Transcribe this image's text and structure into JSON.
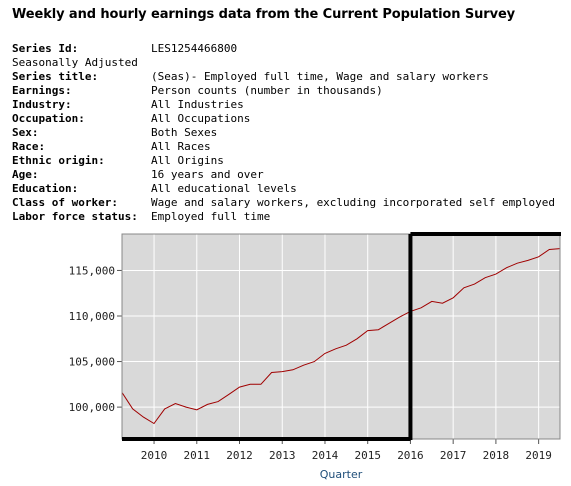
{
  "title": "Weekly and hourly earnings data from the Current Population Survey",
  "meta": [
    {
      "label": "Series Id:",
      "value": "LES1254466800",
      "bold": true
    },
    {
      "label": "Seasonally Adjusted",
      "value": "",
      "bold": false
    },
    {
      "label": "Series title:",
      "value": "(Seas)- Employed full time, Wage and salary workers",
      "bold": true
    },
    {
      "label": "Earnings:",
      "value": "Person counts (number in thousands)",
      "bold": true
    },
    {
      "label": "Industry:",
      "value": "All Industries",
      "bold": true
    },
    {
      "label": "Occupation:",
      "value": "All Occupations",
      "bold": true
    },
    {
      "label": "Sex:",
      "value": "Both Sexes",
      "bold": true
    },
    {
      "label": "Race:",
      "value": "All Races",
      "bold": true
    },
    {
      "label": "Ethnic origin:",
      "value": "All Origins",
      "bold": true
    },
    {
      "label": "Age:",
      "value": "16 years and over",
      "bold": true
    },
    {
      "label": "Education:",
      "value": "All educational levels",
      "bold": true
    },
    {
      "label": "Class of worker:",
      "value": "Wage and salary workers, excluding incorporated self employed",
      "bold": true
    },
    {
      "label": "Labor force status:",
      "value": "Employed full time",
      "bold": true
    }
  ],
  "chart_data": {
    "type": "line",
    "xlabel": "Quarter",
    "ylabel": "",
    "xlim": [
      2009.25,
      2019.5
    ],
    "ylim": [
      96500,
      119000
    ],
    "yticks": [
      100000,
      105000,
      110000,
      115000
    ],
    "ytick_labels": [
      "100,000",
      "105,000",
      "110,000",
      "115,000"
    ],
    "xticks": [
      2010,
      2011,
      2012,
      2013,
      2014,
      2015,
      2016,
      2017,
      2018,
      2019
    ],
    "xtick_labels": [
      "2010",
      "2011",
      "2012",
      "2013",
      "2014",
      "2015",
      "2016",
      "2017",
      "2018",
      "2019"
    ],
    "grid": true,
    "colors": {
      "line": "#a00000",
      "plot_bg": "#d9d9d9",
      "frame": "#000000",
      "axis_label": "#1f4e79"
    },
    "series": [
      {
        "x": [
          2009.25,
          2009.5,
          2009.75,
          2010.0,
          2010.25,
          2010.5,
          2010.75,
          2011.0,
          2011.25,
          2011.5,
          2011.75,
          2012.0,
          2012.25,
          2012.5,
          2012.75,
          2013.0,
          2013.25,
          2013.5,
          2013.75,
          2014.0,
          2014.25,
          2014.5,
          2014.75,
          2015.0,
          2015.25,
          2015.5,
          2015.75,
          2016.0,
          2016.25,
          2016.5,
          2016.75,
          2017.0,
          2017.25,
          2017.5,
          2017.75,
          2018.0,
          2018.25,
          2018.5,
          2018.75,
          2019.0,
          2019.25,
          2019.5
        ],
        "values": [
          101600,
          99800,
          98900,
          98200,
          99800,
          100400,
          100000,
          99700,
          100300,
          100600,
          101400,
          102200,
          102500,
          102500,
          103800,
          103900,
          104100,
          104600,
          105000,
          105900,
          106400,
          106800,
          107500,
          108400,
          108500,
          109200,
          109900,
          110500,
          110900,
          111600,
          111400,
          112000,
          113100,
          113500,
          114200,
          114600,
          115300,
          115800,
          116100,
          116500,
          117300,
          117400
        ]
      }
    ]
  }
}
